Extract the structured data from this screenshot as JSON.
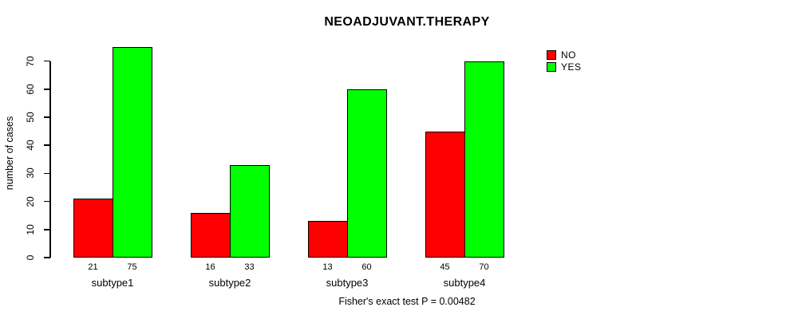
{
  "caption": "Fisher's exact test P = 0.00482",
  "chart_data": {
    "type": "bar",
    "title": "NEOADJUVANT.THERAPY",
    "xlabel": "",
    "ylabel": "number of cases",
    "categories": [
      "subtype1",
      "subtype2",
      "subtype3",
      "subtype4"
    ],
    "series": [
      {
        "name": "NO",
        "color": "#ff0000",
        "values": [
          21,
          16,
          13,
          45
        ]
      },
      {
        "name": "YES",
        "color": "#00ff00",
        "values": [
          75,
          33,
          60,
          70
        ]
      }
    ],
    "bar_value_labels": [
      [
        "21",
        "75"
      ],
      [
        "16",
        "33"
      ],
      [
        "13",
        "60"
      ],
      [
        "45",
        "70"
      ]
    ],
    "yticks": [
      0,
      10,
      20,
      30,
      40,
      50,
      60,
      70
    ],
    "ylim": [
      0,
      75
    ],
    "grid": false,
    "legend_position": "right-of-plot-top",
    "annotation": "Fisher's exact test P = 0.00482"
  }
}
